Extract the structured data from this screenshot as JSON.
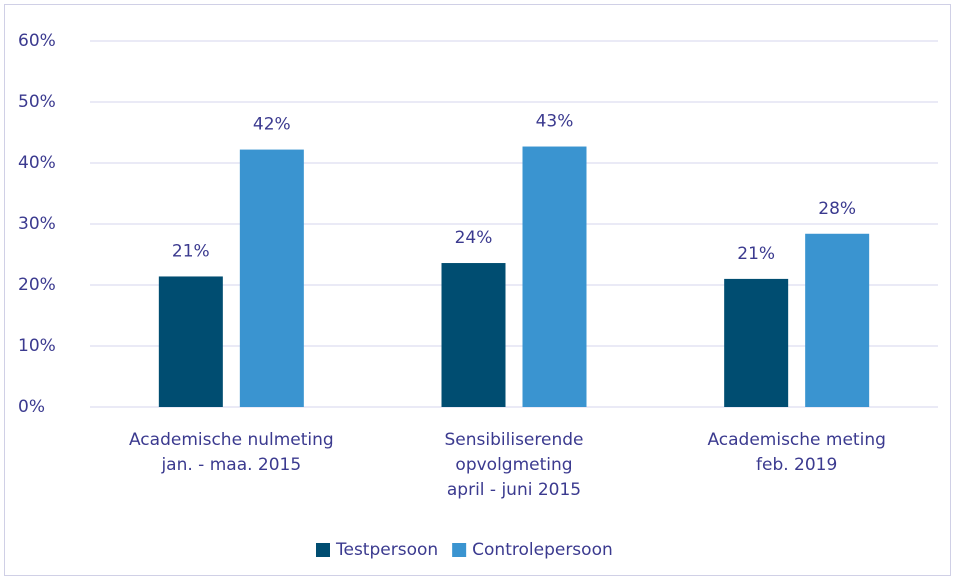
{
  "chart_data": {
    "type": "bar",
    "categories": [
      "Academische nulmeting\njan. - maa. 2015",
      "Sensibiliserende\nopvolgmeting\napril - juni 2015",
      "Academische meting\nfeb. 2019"
    ],
    "series": [
      {
        "name": "Testpersoon",
        "color": "#004d71",
        "values": [
          21.4,
          23.6,
          21.0
        ],
        "value_labels": [
          "21%",
          "24%",
          "21%"
        ]
      },
      {
        "name": "Controlepersoon",
        "color": "#3a94d0",
        "values": [
          42.2,
          42.7,
          28.4
        ],
        "value_labels": [
          "42%",
          "43%",
          "28%"
        ]
      }
    ],
    "ylim": [
      0,
      60
    ],
    "yticks": [
      {
        "value": 0,
        "label": "0%"
      },
      {
        "value": 10,
        "label": "10%"
      },
      {
        "value": 20,
        "label": "20%"
      },
      {
        "value": 30,
        "label": "30%"
      },
      {
        "value": 40,
        "label": "40%"
      },
      {
        "value": 50,
        "label": "50%"
      },
      {
        "value": 60,
        "label": "60%"
      }
    ],
    "grid": true,
    "legend": "bottom"
  }
}
